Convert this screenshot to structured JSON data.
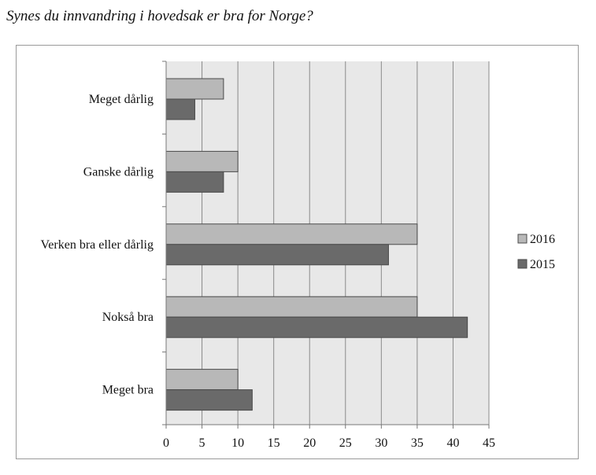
{
  "chart_data": {
    "type": "bar",
    "orientation": "horizontal",
    "title": "Synes du innvandring i hovedsak er bra for Norge?",
    "categories": [
      "Meget dårlig",
      "Ganske dårlig",
      "Verken bra eller dårlig",
      "Nokså bra",
      "Meget bra"
    ],
    "series": [
      {
        "name": "2016",
        "values": [
          8,
          10,
          35,
          35,
          10
        ],
        "color": "#b8b8b8"
      },
      {
        "name": "2015",
        "values": [
          4,
          8,
          31,
          42,
          12
        ],
        "color": "#6a6a6a"
      }
    ],
    "xlim": [
      0,
      45
    ],
    "xticks": [
      0,
      5,
      10,
      15,
      20,
      25,
      30,
      35,
      40,
      45
    ],
    "grid": true,
    "plot_background": "#e8e8e8",
    "legend_position": "right"
  }
}
